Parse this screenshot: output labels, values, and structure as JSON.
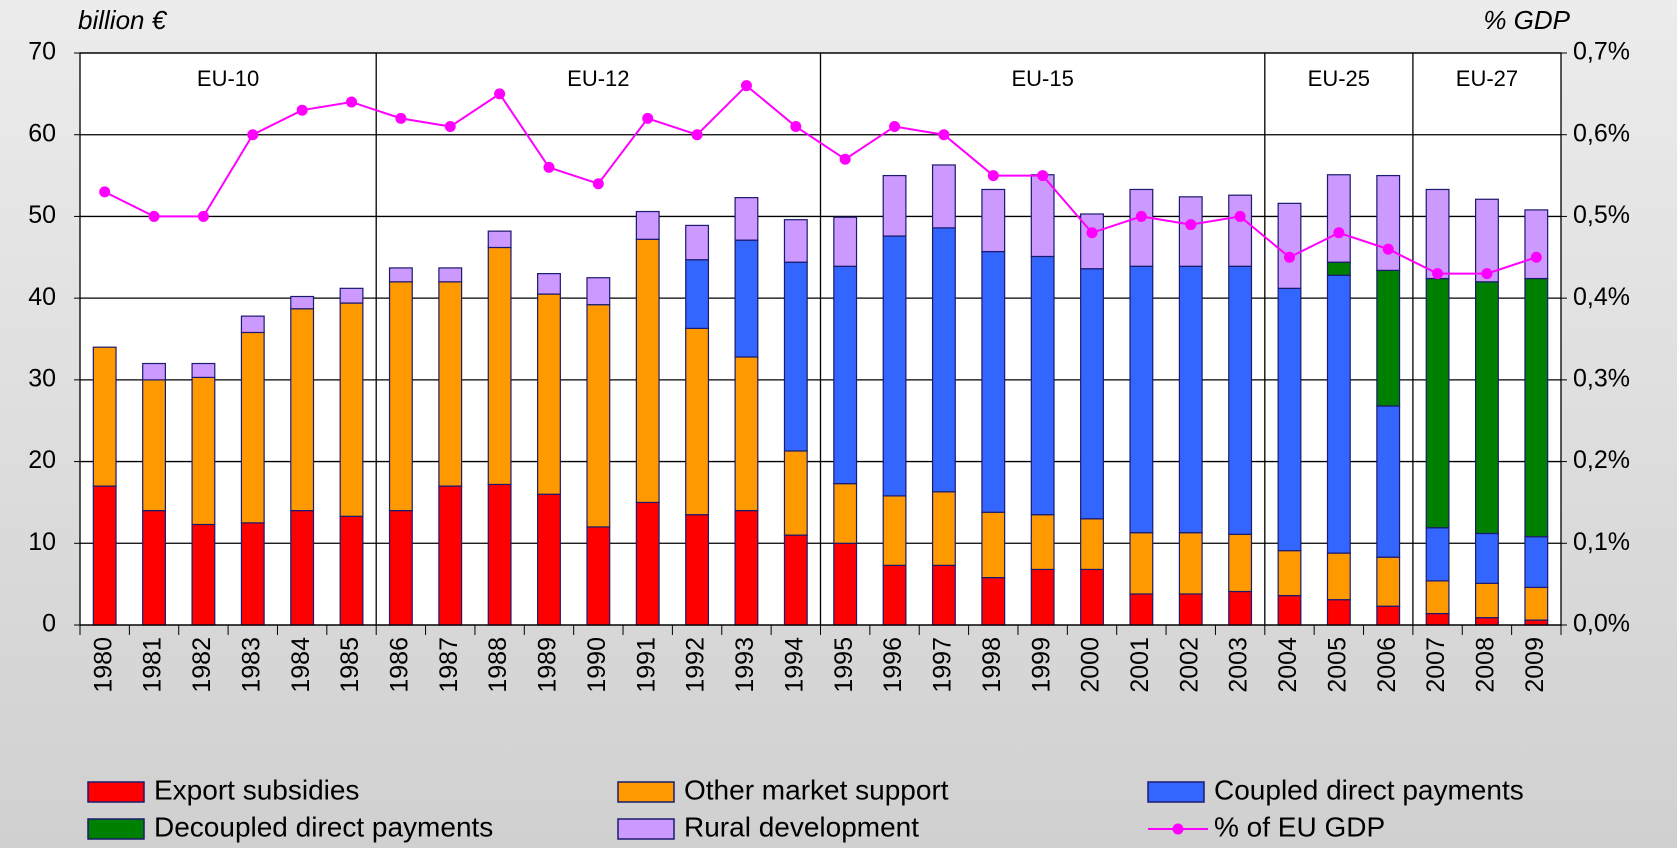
{
  "chart_data": {
    "type": "bar",
    "stacked": true,
    "y_axis_label": "billion €",
    "y2_axis_label": "% GDP",
    "categories": [
      "1980",
      "1981",
      "1982",
      "1983",
      "1984",
      "1985",
      "1986",
      "1987",
      "1988",
      "1989",
      "1990",
      "1991",
      "1992",
      "1993",
      "1994",
      "1995",
      "1996",
      "1997",
      "1998",
      "1999",
      "2000",
      "2001",
      "2002",
      "2003",
      "2004",
      "2005",
      "2006",
      "2007",
      "2008",
      "2009"
    ],
    "periods": [
      {
        "label": "EU-10",
        "start": "1980",
        "end": "1985"
      },
      {
        "label": "EU-12",
        "start": "1986",
        "end": "1994"
      },
      {
        "label": "EU-15",
        "start": "1995",
        "end": "2003"
      },
      {
        "label": "EU-25",
        "start": "2004",
        "end": "2006"
      },
      {
        "label": "EU-27",
        "start": "2007",
        "end": "2009"
      }
    ],
    "series": [
      {
        "name": "Export subsidies",
        "color": "#ff0000",
        "values": [
          17,
          14,
          12.3,
          12.5,
          14,
          13.3,
          14,
          17,
          17.2,
          16,
          12,
          15,
          13.5,
          14,
          11,
          10,
          7.3,
          7.3,
          5.8,
          6.8,
          6.8,
          3.8,
          3.8,
          4.1,
          3.6,
          3.1,
          2.3,
          1.4,
          0.9,
          0.6
        ]
      },
      {
        "name": "Other market support",
        "color": "#ff9900",
        "values": [
          17,
          16,
          18,
          23.3,
          24.7,
          26.1,
          28,
          25,
          29,
          24.5,
          27.2,
          32.2,
          22.8,
          18.8,
          10.3,
          7.3,
          8.5,
          9,
          8,
          6.7,
          6.2,
          7.5,
          7.5,
          7,
          5.5,
          5.7,
          6,
          4,
          4.2,
          4
        ]
      },
      {
        "name": "Coupled direct payments",
        "color": "#3366ff",
        "values": [
          0,
          0,
          0,
          0,
          0,
          0,
          0,
          0,
          0,
          0,
          0,
          0,
          8.4,
          14.3,
          23.1,
          26.6,
          31.8,
          32.3,
          31.9,
          31.6,
          30.6,
          32.6,
          32.6,
          32.8,
          32.1,
          34,
          18.5,
          6.5,
          6.1,
          6.2
        ]
      },
      {
        "name": "Decoupled direct payments",
        "color": "#008000",
        "values": [
          0,
          0,
          0,
          0,
          0,
          0,
          0,
          0,
          0,
          0,
          0,
          0,
          0,
          0,
          0,
          0,
          0,
          0,
          0,
          0,
          0,
          0,
          0,
          0,
          0,
          1.6,
          16.6,
          30.5,
          30.8,
          31.6
        ]
      },
      {
        "name": "Rural development",
        "color": "#cc99ff",
        "values": [
          0,
          2,
          1.7,
          2,
          1.5,
          1.8,
          1.7,
          1.7,
          2,
          2.5,
          3.3,
          3.4,
          4.2,
          5.2,
          5.2,
          6,
          7.4,
          7.7,
          7.6,
          10,
          6.7,
          9.4,
          8.5,
          8.7,
          10.4,
          10.7,
          11.6,
          10.9,
          10.1,
          8.4
        ]
      },
      {
        "name": "% of EU GDP",
        "color": "#ff00ff",
        "type": "line",
        "axis": "y2",
        "values": [
          0.53,
          0.5,
          0.5,
          0.6,
          0.63,
          0.64,
          0.62,
          0.61,
          0.65,
          0.56,
          0.54,
          0.62,
          0.6,
          0.66,
          0.61,
          0.57,
          0.61,
          0.6,
          0.55,
          0.55,
          0.48,
          0.5,
          0.49,
          0.5,
          0.45,
          0.48,
          0.46,
          0.43,
          0.43,
          0.45
        ]
      }
    ],
    "ylim": [
      0,
      70
    ],
    "yticks": [
      0,
      10,
      20,
      30,
      40,
      50,
      60,
      70
    ],
    "y2lim": [
      0,
      0.7
    ],
    "y2ticks": [
      {
        "value": 0,
        "label": "0,0%"
      },
      {
        "value": 0.1,
        "label": "0,1%"
      },
      {
        "value": 0.2,
        "label": "0,2%"
      },
      {
        "value": 0.3,
        "label": "0,3%"
      },
      {
        "value": 0.4,
        "label": "0,4%"
      },
      {
        "value": 0.5,
        "label": "0,5%"
      },
      {
        "value": 0.6,
        "label": "0,6%"
      },
      {
        "value": 0.7,
        "label": "0,7%"
      }
    ],
    "grid": true
  }
}
